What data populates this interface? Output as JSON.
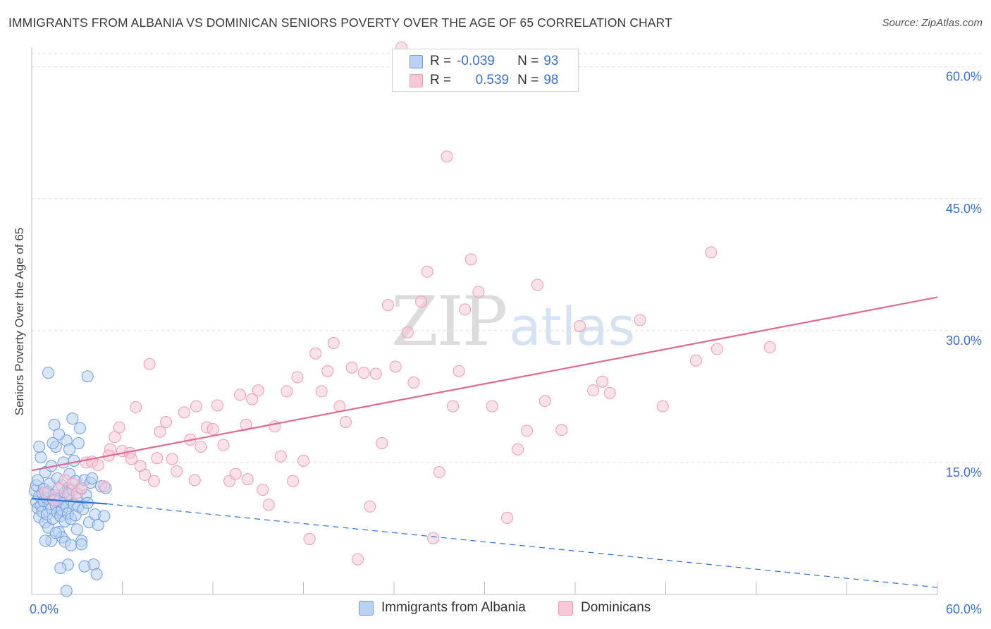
{
  "chart_data": {
    "type": "scatter",
    "title": "IMMIGRANTS FROM ALBANIA VS DOMINICAN SENIORS POVERTY OVER THE AGE OF 65 CORRELATION CHART",
    "source": "Source: ZipAtlas.com",
    "ylabel": "Seniors Poverty Over the Age of 65",
    "xlabel": "",
    "xlim": [
      0,
      60
    ],
    "ylim": [
      0,
      61.5
    ],
    "x_tick_labels": [
      "0.0%",
      "60.0%"
    ],
    "y_tick_labels": [
      {
        "value": 15,
        "label": "15.0%"
      },
      {
        "value": 30,
        "label": "30.0%"
      },
      {
        "value": 45,
        "label": "45.0%"
      },
      {
        "value": 60,
        "label": "60.0%"
      }
    ],
    "watermark": {
      "zip": "ZIP",
      "atlas": "atlas"
    },
    "legend": [
      {
        "r_label": "R =",
        "r_value": "-0.039",
        "n_label": "N =",
        "n_value": "93"
      },
      {
        "r_label": "R =",
        "r_value": "0.539",
        "n_label": "N =",
        "n_value": "98"
      }
    ],
    "series": [
      {
        "name": "Immigrants from Albania",
        "color": "#6a9de0",
        "fill": "#b9d2f3",
        "trend": {
          "x0": 0,
          "y0": 10.9,
          "x1": 5,
          "y1": 10.3,
          "dash_x1": 60,
          "dash_y1": 0.8,
          "color": "#2b6fd4"
        },
        "points": [
          [
            0.2,
            11.8
          ],
          [
            0.3,
            10.5
          ],
          [
            0.3,
            12.4
          ],
          [
            0.4,
            13.0
          ],
          [
            0.4,
            9.8
          ],
          [
            0.5,
            11.2
          ],
          [
            0.5,
            8.8
          ],
          [
            0.6,
            10.1
          ],
          [
            0.6,
            15.6
          ],
          [
            0.7,
            11.5
          ],
          [
            0.7,
            9.4
          ],
          [
            0.8,
            12.0
          ],
          [
            0.8,
            10.6
          ],
          [
            0.9,
            8.2
          ],
          [
            0.9,
            13.9
          ],
          [
            1.0,
            10.9
          ],
          [
            1.0,
            9.1
          ],
          [
            1.1,
            11.7
          ],
          [
            1.1,
            7.6
          ],
          [
            1.2,
            10.3
          ],
          [
            1.2,
            12.6
          ],
          [
            1.3,
            9.8
          ],
          [
            1.3,
            14.6
          ],
          [
            1.4,
            10.8
          ],
          [
            1.4,
            8.6
          ],
          [
            1.5,
            19.3
          ],
          [
            1.5,
            11.3
          ],
          [
            1.6,
            10.1
          ],
          [
            1.6,
            16.8
          ],
          [
            1.7,
            9.3
          ],
          [
            1.7,
            13.2
          ],
          [
            1.8,
            10.6
          ],
          [
            1.8,
            7.1
          ],
          [
            1.9,
            11.0
          ],
          [
            1.9,
            8.9
          ],
          [
            2.0,
            12.4
          ],
          [
            2.0,
            9.6
          ],
          [
            2.1,
            10.4
          ],
          [
            2.1,
            15.0
          ],
          [
            2.2,
            11.6
          ],
          [
            2.2,
            8.3
          ],
          [
            2.3,
            10.0
          ],
          [
            2.3,
            17.5
          ],
          [
            2.4,
            12.1
          ],
          [
            2.4,
            9.2
          ],
          [
            2.5,
            11.4
          ],
          [
            2.5,
            13.7
          ],
          [
            2.6,
            10.7
          ],
          [
            2.6,
            8.6
          ],
          [
            2.7,
            11.9
          ],
          [
            2.7,
            20.0
          ],
          [
            2.8,
            10.2
          ],
          [
            2.8,
            15.2
          ],
          [
            2.9,
            9.0
          ],
          [
            2.9,
            12.9
          ],
          [
            3.0,
            11.1
          ],
          [
            3.0,
            7.4
          ],
          [
            3.1,
            17.2
          ],
          [
            3.1,
            10.0
          ],
          [
            3.2,
            18.9
          ],
          [
            3.3,
            12.0
          ],
          [
            3.3,
            6.1
          ],
          [
            3.4,
            9.7
          ],
          [
            3.5,
            13.0
          ],
          [
            3.6,
            11.3
          ],
          [
            3.7,
            24.8
          ],
          [
            3.8,
            8.2
          ],
          [
            3.9,
            12.7
          ],
          [
            4.0,
            13.2
          ],
          [
            4.1,
            3.4
          ],
          [
            4.2,
            9.1
          ],
          [
            4.3,
            2.3
          ],
          [
            4.4,
            7.9
          ],
          [
            4.6,
            12.3
          ],
          [
            4.8,
            8.9
          ],
          [
            2.0,
            6.5
          ],
          [
            2.2,
            6.0
          ],
          [
            1.3,
            6.1
          ],
          [
            1.6,
            7.0
          ],
          [
            2.6,
            5.6
          ],
          [
            2.4,
            3.4
          ],
          [
            1.9,
            3.0
          ],
          [
            3.3,
            5.7
          ],
          [
            3.5,
            3.2
          ],
          [
            2.3,
            0.4
          ],
          [
            1.1,
            25.2
          ],
          [
            0.5,
            16.8
          ],
          [
            1.4,
            17.2
          ],
          [
            2.5,
            16.5
          ],
          [
            1.8,
            18.2
          ],
          [
            0.9,
            6.1
          ],
          [
            3.7,
            10.4
          ],
          [
            4.9,
            12.1
          ]
        ]
      },
      {
        "name": "Dominicans",
        "color": "#ef9ab6",
        "fill": "#f7c8d6",
        "trend": {
          "x0": 0,
          "y0": 14.1,
          "x1": 60,
          "y1": 33.8,
          "color": "#e16893"
        },
        "points": [
          [
            0.9,
            11.6
          ],
          [
            1.5,
            10.7
          ],
          [
            1.8,
            12.1
          ],
          [
            2.2,
            13.0
          ],
          [
            2.4,
            11.4
          ],
          [
            2.7,
            12.6
          ],
          [
            3.0,
            11.5
          ],
          [
            3.3,
            12.1
          ],
          [
            3.6,
            15.0
          ],
          [
            4.0,
            15.1
          ],
          [
            4.4,
            14.7
          ],
          [
            4.8,
            12.3
          ],
          [
            5.2,
            16.5
          ],
          [
            5.5,
            17.9
          ],
          [
            5.8,
            19.0
          ],
          [
            6.0,
            16.3
          ],
          [
            6.5,
            16.1
          ],
          [
            6.9,
            21.3
          ],
          [
            7.2,
            14.6
          ],
          [
            7.5,
            13.6
          ],
          [
            7.8,
            26.2
          ],
          [
            8.1,
            12.9
          ],
          [
            8.5,
            18.5
          ],
          [
            8.9,
            19.6
          ],
          [
            9.3,
            15.4
          ],
          [
            9.6,
            14.0
          ],
          [
            10.1,
            20.7
          ],
          [
            10.5,
            17.6
          ],
          [
            10.9,
            21.4
          ],
          [
            11.2,
            16.8
          ],
          [
            11.6,
            19.0
          ],
          [
            12.0,
            18.8
          ],
          [
            12.3,
            21.5
          ],
          [
            12.7,
            17.0
          ],
          [
            13.1,
            12.9
          ],
          [
            13.5,
            13.7
          ],
          [
            13.8,
            22.7
          ],
          [
            14.2,
            19.3
          ],
          [
            14.6,
            22.2
          ],
          [
            15.0,
            23.2
          ],
          [
            15.3,
            11.9
          ],
          [
            15.7,
            10.2
          ],
          [
            16.1,
            19.1
          ],
          [
            16.5,
            15.7
          ],
          [
            16.9,
            23.1
          ],
          [
            17.3,
            12.9
          ],
          [
            17.6,
            24.7
          ],
          [
            18.0,
            15.2
          ],
          [
            18.4,
            6.3
          ],
          [
            18.8,
            27.4
          ],
          [
            19.2,
            23.1
          ],
          [
            19.6,
            25.4
          ],
          [
            20.0,
            28.6
          ],
          [
            20.4,
            21.4
          ],
          [
            20.8,
            19.6
          ],
          [
            21.2,
            25.8
          ],
          [
            21.6,
            4.0
          ],
          [
            22.0,
            25.2
          ],
          [
            22.4,
            10.0
          ],
          [
            22.8,
            25.1
          ],
          [
            23.2,
            17.2
          ],
          [
            23.6,
            32.9
          ],
          [
            24.1,
            25.9
          ],
          [
            24.5,
            62.2
          ],
          [
            24.9,
            29.8
          ],
          [
            25.3,
            24.1
          ],
          [
            25.8,
            33.3
          ],
          [
            26.2,
            36.7
          ],
          [
            26.6,
            6.4
          ],
          [
            27.0,
            13.9
          ],
          [
            27.5,
            49.8
          ],
          [
            27.9,
            21.4
          ],
          [
            28.3,
            25.4
          ],
          [
            28.7,
            32.4
          ],
          [
            29.1,
            38.1
          ],
          [
            29.6,
            34.4
          ],
          [
            30.5,
            21.4
          ],
          [
            31.5,
            8.7
          ],
          [
            32.2,
            16.5
          ],
          [
            32.8,
            18.6
          ],
          [
            33.5,
            35.2
          ],
          [
            34.0,
            22.0
          ],
          [
            35.1,
            18.7
          ],
          [
            36.3,
            30.5
          ],
          [
            37.2,
            23.2
          ],
          [
            37.8,
            24.2
          ],
          [
            38.3,
            22.9
          ],
          [
            40.3,
            31.2
          ],
          [
            41.8,
            21.4
          ],
          [
            44.0,
            26.6
          ],
          [
            45.0,
            38.9
          ],
          [
            45.4,
            27.9
          ],
          [
            48.9,
            28.1
          ],
          [
            14.3,
            13.1
          ],
          [
            10.8,
            13.0
          ],
          [
            6.6,
            15.4
          ],
          [
            8.3,
            15.5
          ],
          [
            5.1,
            15.8
          ]
        ]
      }
    ]
  }
}
